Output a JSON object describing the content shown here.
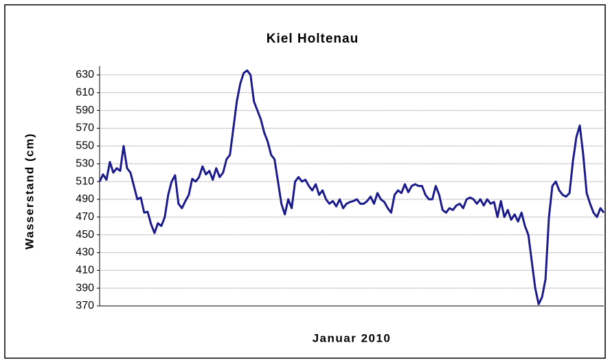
{
  "chart_data": {
    "type": "line",
    "title": "Kiel Holtenau",
    "xlabel": "Januar 2010",
    "ylabel": "Wasserstand (cm)",
    "ylim": [
      370,
      640
    ],
    "yticks": [
      370,
      390,
      410,
      430,
      450,
      470,
      490,
      510,
      530,
      550,
      570,
      590,
      610,
      630
    ],
    "grid": true,
    "series": [
      {
        "name": "Kiel Holtenau",
        "color": "#1a1a8c",
        "values": [
          510,
          518,
          512,
          532,
          520,
          525,
          522,
          550,
          525,
          520,
          505,
          490,
          492,
          475,
          476,
          462,
          452,
          463,
          460,
          470,
          495,
          510,
          517,
          485,
          480,
          488,
          495,
          513,
          510,
          515,
          527,
          518,
          522,
          512,
          525,
          515,
          520,
          535,
          540,
          570,
          600,
          620,
          632,
          635,
          630,
          600,
          590,
          580,
          565,
          555,
          540,
          535,
          510,
          485,
          473,
          490,
          480,
          510,
          515,
          510,
          512,
          505,
          500,
          507,
          495,
          500,
          490,
          485,
          488,
          482,
          490,
          480,
          485,
          487,
          488,
          490,
          485,
          485,
          488,
          493,
          485,
          497,
          490,
          487,
          480,
          475,
          495,
          500,
          497,
          507,
          498,
          505,
          507,
          505,
          505,
          495,
          490,
          490,
          505,
          495,
          478,
          475,
          480,
          478,
          483,
          485,
          480,
          490,
          492,
          490,
          485,
          490,
          483,
          490,
          485,
          487,
          470,
          488,
          470,
          478,
          467,
          473,
          465,
          475,
          460,
          450,
          420,
          390,
          372,
          380,
          400,
          470,
          505,
          510,
          500,
          495,
          493,
          497,
          533,
          560,
          573,
          540,
          497,
          485,
          475,
          470,
          480,
          475
        ]
      }
    ]
  }
}
